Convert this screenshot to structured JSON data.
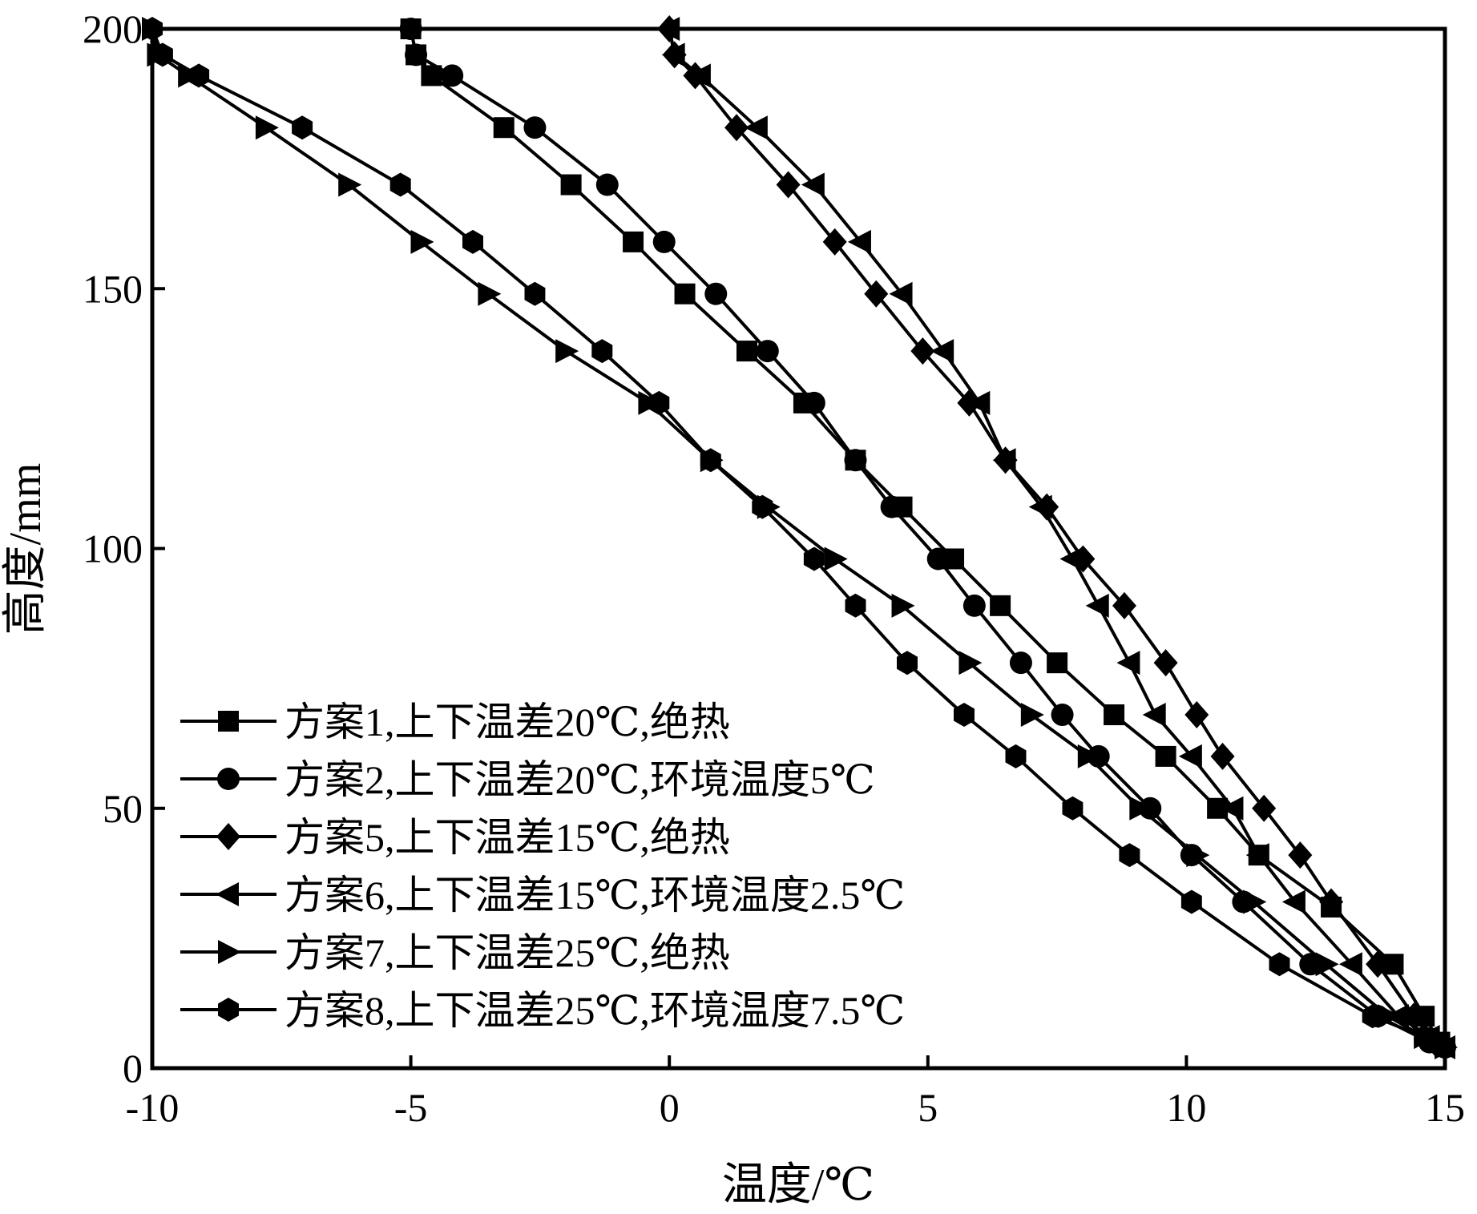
{
  "chart_data": {
    "type": "line",
    "title": "",
    "xlabel": "温度/℃",
    "ylabel": "高度/mm",
    "xlim": [
      -10,
      15
    ],
    "ylim": [
      0,
      200
    ],
    "xticks": [
      -10,
      -5,
      0,
      5,
      10,
      15
    ],
    "yticks": [
      0,
      50,
      100,
      150,
      200
    ],
    "xtick_labels": [
      "-10",
      "-5",
      "0",
      "5",
      "10",
      "15"
    ],
    "ytick_labels": [
      "0",
      "50",
      "100",
      "150",
      "200"
    ],
    "grid": false,
    "legend_position": "bottom-left",
    "series": [
      {
        "name": "方案1,上下温差20℃,绝热",
        "marker": "square",
        "x": [
          -5.0,
          -4.9,
          -4.6,
          -3.2,
          -1.9,
          -0.7,
          0.3,
          1.5,
          2.6,
          3.6,
          4.5,
          5.5,
          6.4,
          7.5,
          8.6,
          9.6,
          10.6,
          11.4,
          12.8,
          14.0,
          14.6,
          14.9
        ],
        "y": [
          200,
          195,
          191,
          181,
          170,
          159,
          149,
          138,
          128,
          117,
          108,
          98,
          89,
          78,
          68,
          60,
          50,
          41,
          31,
          20,
          10,
          5
        ]
      },
      {
        "name": "方案2,上下温差20℃,环境温度5℃",
        "marker": "circle",
        "x": [
          -5.0,
          -4.9,
          -4.2,
          -2.6,
          -1.2,
          -0.1,
          0.9,
          1.9,
          2.8,
          3.6,
          4.3,
          5.2,
          5.9,
          6.8,
          7.6,
          8.3,
          9.3,
          10.1,
          11.1,
          12.4,
          13.7,
          14.7,
          15.0
        ],
        "y": [
          200,
          195,
          191,
          181,
          170,
          159,
          149,
          138,
          128,
          117,
          108,
          98,
          89,
          78,
          68,
          60,
          50,
          41,
          32,
          20,
          10,
          5,
          4
        ]
      },
      {
        "name": "方案5,上下温差15℃,绝热",
        "marker": "diamond",
        "x": [
          0.0,
          0.1,
          0.5,
          1.3,
          2.3,
          3.2,
          4.0,
          4.9,
          5.8,
          6.5,
          7.3,
          8.0,
          8.8,
          9.6,
          10.2,
          10.7,
          11.5,
          12.2,
          12.8,
          13.7,
          14.4,
          14.8,
          15.0
        ],
        "y": [
          200,
          195,
          191,
          181,
          170,
          159,
          149,
          138,
          128,
          117,
          108,
          98,
          89,
          78,
          68,
          60,
          50,
          41,
          32,
          20,
          10,
          5,
          4
        ]
      },
      {
        "name": "方案6,上下温差15℃,环境温度2.5℃",
        "marker": "triangle-left",
        "x": [
          0.0,
          0.1,
          0.6,
          1.7,
          2.8,
          3.7,
          4.5,
          5.3,
          6.0,
          6.5,
          7.2,
          7.8,
          8.3,
          8.9,
          9.4,
          10.1,
          10.9,
          11.4,
          12.1,
          13.2,
          14.1,
          14.7,
          15.0
        ],
        "y": [
          200,
          195,
          191,
          181,
          170,
          159,
          149,
          138,
          128,
          117,
          108,
          98,
          89,
          78,
          68,
          60,
          50,
          41,
          32,
          20,
          10,
          6,
          4
        ]
      },
      {
        "name": "方案7,上下温差25℃,绝热",
        "marker": "triangle-right",
        "x": [
          -10.0,
          -9.9,
          -9.3,
          -7.8,
          -6.2,
          -4.8,
          -3.5,
          -2.0,
          -0.4,
          0.8,
          1.9,
          3.2,
          4.5,
          5.8,
          7.0,
          8.1,
          9.1,
          10.2,
          11.3,
          12.7,
          13.9,
          14.6,
          15.0
        ],
        "y": [
          200,
          195,
          191,
          181,
          170,
          159,
          149,
          138,
          128,
          117,
          108,
          98,
          89,
          78,
          68,
          60,
          50,
          41,
          32,
          20,
          10,
          6,
          4
        ]
      },
      {
        "name": "方案8,上下温差25℃,环境温度7.5℃",
        "marker": "hexagon",
        "x": [
          -10.0,
          -9.8,
          -9.1,
          -7.1,
          -5.2,
          -3.8,
          -2.6,
          -1.3,
          -0.2,
          0.8,
          1.8,
          2.8,
          3.6,
          4.6,
          5.7,
          6.7,
          7.8,
          8.9,
          10.1,
          11.8,
          13.6,
          14.6,
          15.0
        ],
        "y": [
          200,
          195,
          191,
          181,
          170,
          159,
          149,
          138,
          128,
          117,
          108,
          98,
          89,
          78,
          68,
          60,
          50,
          41,
          32,
          20,
          10,
          6,
          4
        ]
      }
    ]
  }
}
